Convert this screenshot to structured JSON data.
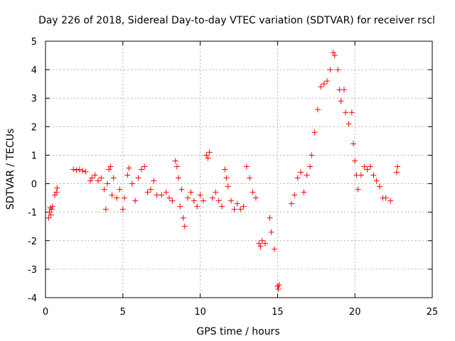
{
  "chart_data": {
    "type": "scatter",
    "title": "Day 226 of 2018, Sidereal Day-to-day VTEC variation (SDTVAR) for receiver rscl",
    "xlabel": "GPS time / hours",
    "ylabel": "SDTVAR / TECUs",
    "xlim": [
      0,
      25
    ],
    "ylim": [
      -4,
      5
    ],
    "xticks": [
      0,
      5,
      10,
      15,
      20,
      25
    ],
    "yticks": [
      -4,
      -3,
      -2,
      -1,
      0,
      1,
      2,
      3,
      4,
      5
    ],
    "grid": true,
    "marker": "plus",
    "color": "#ff0000",
    "series": [
      {
        "name": "SDTVAR",
        "points": [
          [
            0.2,
            -1.2
          ],
          [
            0.25,
            -1.0
          ],
          [
            0.3,
            -0.85
          ],
          [
            0.35,
            -1.1
          ],
          [
            0.4,
            -0.9
          ],
          [
            0.45,
            -0.8
          ],
          [
            0.6,
            -0.4
          ],
          [
            0.7,
            -0.3
          ],
          [
            0.75,
            -0.15
          ],
          [
            1.8,
            0.5
          ],
          [
            2.0,
            0.48
          ],
          [
            2.2,
            0.5
          ],
          [
            2.4,
            0.45
          ],
          [
            2.6,
            0.42
          ],
          [
            2.9,
            0.1
          ],
          [
            3.0,
            0.2
          ],
          [
            3.2,
            0.3
          ],
          [
            3.4,
            0.1
          ],
          [
            3.6,
            0.2
          ],
          [
            3.8,
            -0.2
          ],
          [
            3.9,
            -0.9
          ],
          [
            4.0,
            0.0
          ],
          [
            4.1,
            0.5
          ],
          [
            4.2,
            0.6
          ],
          [
            4.3,
            -0.4
          ],
          [
            4.4,
            0.2
          ],
          [
            4.6,
            -0.5
          ],
          [
            4.8,
            -0.2
          ],
          [
            5.0,
            -0.9
          ],
          [
            5.1,
            -0.5
          ],
          [
            5.3,
            0.3
          ],
          [
            5.4,
            0.55
          ],
          [
            5.6,
            0.0
          ],
          [
            5.8,
            -0.6
          ],
          [
            6.0,
            0.2
          ],
          [
            6.2,
            0.5
          ],
          [
            6.4,
            0.6
          ],
          [
            6.6,
            -0.3
          ],
          [
            6.8,
            -0.2
          ],
          [
            7.0,
            0.1
          ],
          [
            7.2,
            -0.4
          ],
          [
            7.5,
            -0.4
          ],
          [
            7.8,
            -0.3
          ],
          [
            8.0,
            -0.5
          ],
          [
            8.2,
            -0.6
          ],
          [
            8.4,
            0.8
          ],
          [
            8.5,
            0.6
          ],
          [
            8.6,
            0.2
          ],
          [
            8.7,
            -0.8
          ],
          [
            8.8,
            -0.2
          ],
          [
            8.9,
            -1.2
          ],
          [
            9.0,
            -1.5
          ],
          [
            9.2,
            -0.5
          ],
          [
            9.4,
            -0.3
          ],
          [
            9.6,
            -0.6
          ],
          [
            9.8,
            -0.8
          ],
          [
            10.0,
            -0.4
          ],
          [
            10.2,
            -0.6
          ],
          [
            10.4,
            1.0
          ],
          [
            10.5,
            0.9
          ],
          [
            10.6,
            1.1
          ],
          [
            10.8,
            -0.5
          ],
          [
            11.0,
            -0.3
          ],
          [
            11.2,
            -0.6
          ],
          [
            11.4,
            -0.8
          ],
          [
            11.6,
            0.5
          ],
          [
            11.7,
            0.2
          ],
          [
            11.8,
            -0.1
          ],
          [
            12.0,
            -0.6
          ],
          [
            12.2,
            -0.9
          ],
          [
            12.4,
            -0.7
          ],
          [
            12.6,
            -0.9
          ],
          [
            12.8,
            -0.8
          ],
          [
            13.0,
            0.6
          ],
          [
            13.2,
            0.2
          ],
          [
            13.4,
            -0.3
          ],
          [
            13.6,
            -0.5
          ],
          [
            13.8,
            -2.1
          ],
          [
            13.9,
            -2.2
          ],
          [
            14.0,
            -2.0
          ],
          [
            14.2,
            -2.1
          ],
          [
            14.5,
            -1.2
          ],
          [
            14.6,
            -1.7
          ],
          [
            14.8,
            -2.3
          ],
          [
            15.0,
            -3.6
          ],
          [
            15.05,
            -3.7
          ],
          [
            15.1,
            -3.55
          ],
          [
            15.9,
            -0.7
          ],
          [
            16.1,
            -0.4
          ],
          [
            16.3,
            0.2
          ],
          [
            16.5,
            0.4
          ],
          [
            16.7,
            -0.3
          ],
          [
            16.9,
            0.3
          ],
          [
            17.1,
            0.6
          ],
          [
            17.2,
            1.0
          ],
          [
            17.4,
            1.8
          ],
          [
            17.6,
            2.6
          ],
          [
            17.8,
            3.4
          ],
          [
            18.0,
            3.5
          ],
          [
            18.2,
            3.6
          ],
          [
            18.4,
            4.0
          ],
          [
            18.6,
            4.6
          ],
          [
            18.7,
            4.5
          ],
          [
            18.9,
            4.0
          ],
          [
            19.0,
            3.3
          ],
          [
            19.1,
            2.9
          ],
          [
            19.3,
            3.3
          ],
          [
            19.4,
            2.5
          ],
          [
            19.6,
            2.1
          ],
          [
            19.8,
            2.5
          ],
          [
            19.9,
            1.4
          ],
          [
            20.0,
            0.8
          ],
          [
            20.1,
            0.3
          ],
          [
            20.2,
            -0.2
          ],
          [
            20.4,
            0.3
          ],
          [
            20.6,
            0.6
          ],
          [
            20.8,
            0.5
          ],
          [
            21.0,
            0.6
          ],
          [
            21.2,
            0.3
          ],
          [
            21.4,
            0.1
          ],
          [
            21.6,
            -0.1
          ],
          [
            21.8,
            -0.5
          ],
          [
            22.0,
            -0.5
          ],
          [
            22.3,
            -0.6
          ],
          [
            22.7,
            0.4
          ],
          [
            22.75,
            0.6
          ]
        ]
      }
    ]
  }
}
